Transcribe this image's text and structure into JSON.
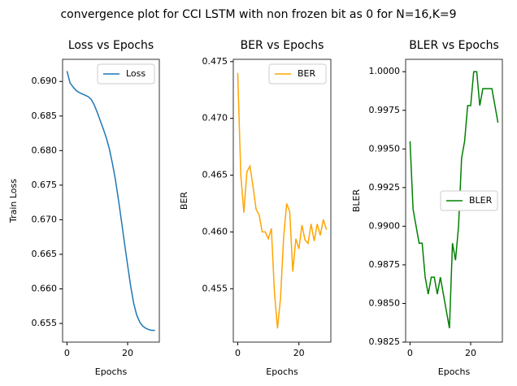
{
  "title": "convergence plot for CCI LSTM with non frozen bit as 0 for N=16,K=9",
  "chart_data": [
    {
      "type": "line",
      "title": "Loss vs Epochs",
      "xlabel": "Epochs",
      "ylabel": "Train Loss",
      "x": [
        0,
        1,
        2,
        3,
        4,
        5,
        6,
        7,
        8,
        9,
        10,
        11,
        12,
        13,
        14,
        15,
        16,
        17,
        18,
        19,
        20,
        21,
        22,
        23,
        24,
        25,
        26,
        27,
        28,
        29
      ],
      "series": [
        {
          "name": "Loss",
          "color": "#1f77b4",
          "values": [
            0.6915,
            0.6898,
            0.6892,
            0.6887,
            0.6884,
            0.6882,
            0.688,
            0.6878,
            0.6874,
            0.6866,
            0.6855,
            0.6843,
            0.6831,
            0.6818,
            0.6802,
            0.6781,
            0.6757,
            0.6728,
            0.6697,
            0.6665,
            0.6634,
            0.6604,
            0.6579,
            0.6562,
            0.6552,
            0.6546,
            0.6543,
            0.6541,
            0.654,
            0.654
          ]
        }
      ],
      "xlim": [
        -1.45,
        30.45
      ],
      "xticks": [
        0,
        20
      ],
      "ylim": [
        0.6523,
        0.6932
      ],
      "yticks": [
        0.655,
        {
          "value": 0.66,
          "label": "0.660"
        },
        0.665,
        {
          "value": 0.67,
          "label": "0.670"
        },
        0.675,
        {
          "value": 0.68,
          "label": "0.680"
        },
        0.685,
        {
          "value": 0.69,
          "label": "0.690"
        }
      ],
      "legend": "upper right"
    },
    {
      "type": "line",
      "title": "BER vs Epochs",
      "xlabel": "Epochs",
      "ylabel": "BER",
      "x": [
        0,
        1,
        2,
        3,
        4,
        5,
        6,
        7,
        8,
        9,
        10,
        11,
        12,
        13,
        14,
        15,
        16,
        17,
        18,
        19,
        20,
        21,
        22,
        23,
        24,
        25,
        26,
        27,
        28,
        29
      ],
      "series": [
        {
          "name": "BER",
          "color": "#ffa500",
          "values": [
            0.474,
            0.465,
            0.4617,
            0.4653,
            0.4658,
            0.464,
            0.462,
            0.4615,
            0.46,
            0.46,
            0.4594,
            0.4603,
            0.4547,
            0.4515,
            0.4542,
            0.4595,
            0.4625,
            0.4618,
            0.4565,
            0.4594,
            0.4585,
            0.4606,
            0.4593,
            0.459,
            0.4607,
            0.4592,
            0.4607,
            0.4597,
            0.4611,
            0.4602
          ]
        }
      ],
      "xlim": [
        -1.45,
        30.45
      ],
      "xticks": [
        0,
        20
      ],
      "ylim": [
        0.4503,
        0.4752
      ],
      "yticks": [
        0.455,
        {
          "value": 0.46,
          "label": "0.460"
        },
        0.465,
        {
          "value": 0.47,
          "label": "0.470"
        },
        0.475
      ],
      "legend": "upper right"
    },
    {
      "type": "line",
      "title": "BLER vs Epochs",
      "xlabel": "Epochs",
      "ylabel": "BLER",
      "x": [
        0,
        1,
        2,
        3,
        4,
        5,
        6,
        7,
        8,
        9,
        10,
        11,
        12,
        13,
        14,
        15,
        16,
        17,
        18,
        19,
        20,
        21,
        22,
        23,
        24,
        25,
        26,
        27,
        28,
        29
      ],
      "series": [
        {
          "name": "BLER",
          "color": "#008000",
          "values": [
            0.9955,
            0.9911,
            0.99,
            0.9889,
            0.9889,
            0.9867,
            0.9856,
            0.9867,
            0.9867,
            0.9856,
            0.9867,
            0.9856,
            0.9845,
            0.9834,
            0.9889,
            0.9878,
            0.99,
            0.9944,
            0.9955,
            0.9978,
            0.9978,
            1.0,
            1.0,
            0.9978,
            0.9989,
            0.9989,
            0.9989,
            0.9989,
            0.9978,
            0.9967
          ]
        }
      ],
      "xlim": [
        -1.45,
        30.45
      ],
      "xticks": [
        0,
        20
      ],
      "ylim": [
        0.9825,
        1.0008
      ],
      "yticks": [
        0.9825,
        {
          "value": 0.985,
          "label": "0.9850"
        },
        0.9875,
        {
          "value": 0.99,
          "label": "0.9900"
        },
        0.9925,
        {
          "value": 0.995,
          "label": "0.9950"
        },
        0.9975,
        {
          "value": 1.0,
          "label": "1.0000"
        }
      ],
      "legend": "center right"
    }
  ]
}
